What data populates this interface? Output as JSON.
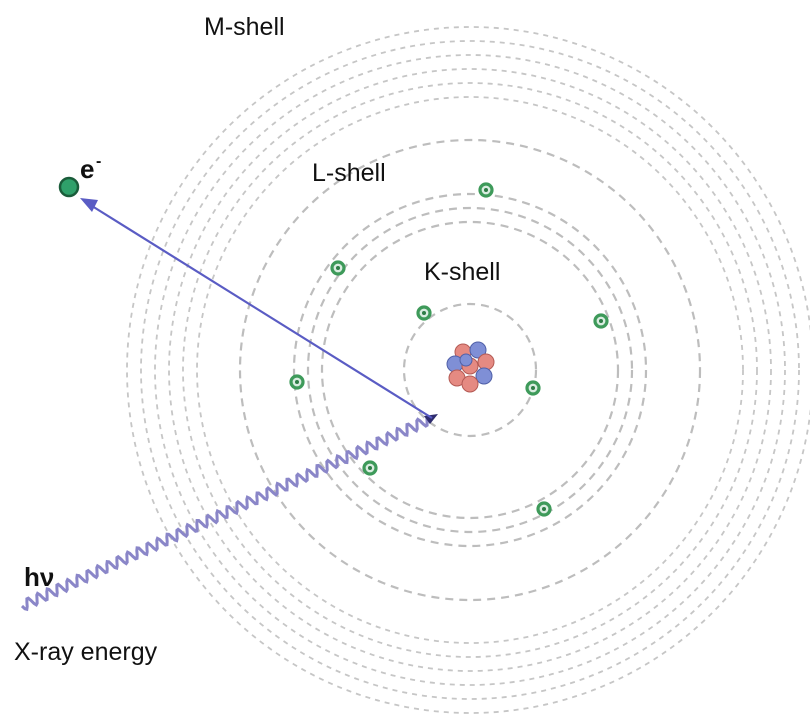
{
  "labels": {
    "m_shell": "M-shell",
    "l_shell": "L-shell",
    "k_shell": "K-shell",
    "electron": "e",
    "electron_charge": "-",
    "photon": "hν",
    "xray": "X-ray energy"
  },
  "colors": {
    "ejection_arrow": "#5a5cc4",
    "photon_wave": "#8a86c8",
    "electron_fill": "#d9ece0",
    "electron_stroke": "#3e9a5a",
    "ejected_electron": "#2fa06a",
    "proton": "#e58a82",
    "neutron": "#7f8fd6",
    "shell": "#bdbdbd"
  },
  "icons": {
    "nucleus": "nucleus-icon",
    "electron": "electron-icon",
    "ejected_electron": "ejected-electron-icon"
  }
}
